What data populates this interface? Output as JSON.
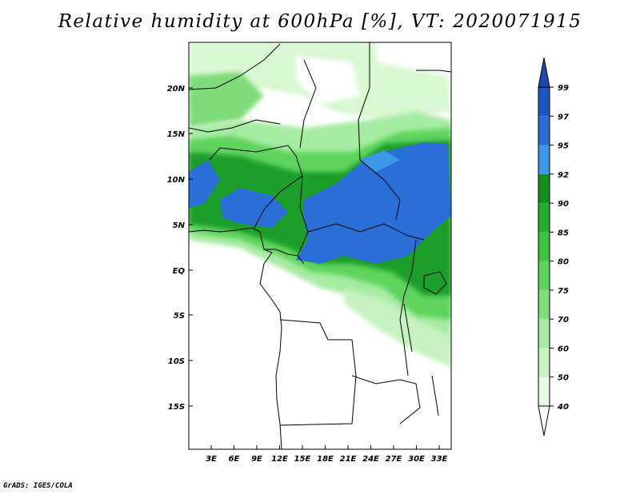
{
  "title": "Relative humidity at 600hPa [%], VT: 2020071915",
  "credit": "GrADS: IGES/COLA",
  "map": {
    "lat_labels": [
      "20N",
      "15N",
      "10N",
      "5N",
      "EQ",
      "5S",
      "10S",
      "15S"
    ],
    "lon_labels": [
      "3E",
      "6E",
      "9E",
      "12E",
      "15E",
      "18E",
      "21E",
      "24E",
      "27E",
      "30E",
      "33E"
    ]
  },
  "colorbar": {
    "levels": [
      "40",
      "50",
      "60",
      "70",
      "75",
      "80",
      "85",
      "90",
      "92",
      "95",
      "97",
      "99"
    ],
    "colors": [
      "#ffffff",
      "#e6fbe3",
      "#c7f3c0",
      "#a4eaa0",
      "#80df7c",
      "#5fd45d",
      "#3fc43f",
      "#24ae2a",
      "#11901d",
      "#3b97e8",
      "#2a6fd8",
      "#1f55c0",
      "#1a49b4"
    ]
  }
}
